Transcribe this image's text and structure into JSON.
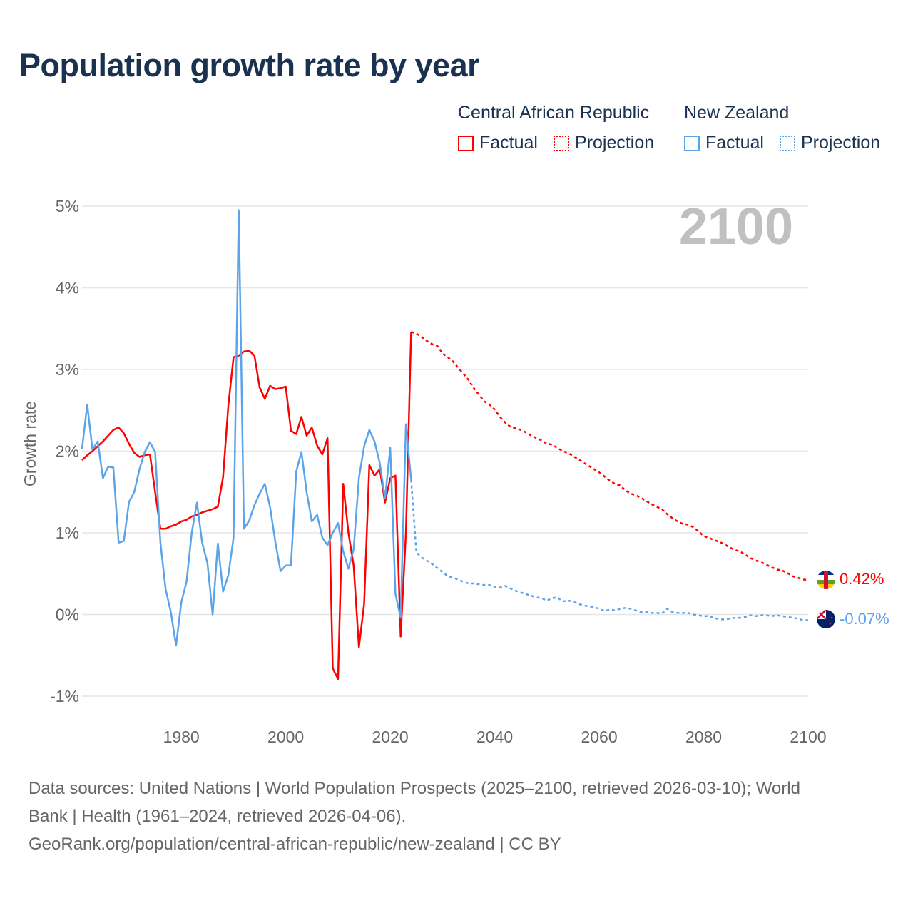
{
  "title": "Population growth rate by year",
  "legend": {
    "groups": [
      {
        "name": "Central African Republic",
        "factual": "Factual",
        "projection": "Projection",
        "color": "#ff0000"
      },
      {
        "name": "New Zealand",
        "factual": "Factual",
        "projection": "Projection",
        "color": "#5ca4ea"
      }
    ]
  },
  "footer": {
    "line1": "Data sources: United Nations | World Population Prospects (2025–2100, retrieved 2026-03-10); World",
    "line2": "Bank | Health (1961–2024, retrieved 2026-04-06).",
    "line3": "GeoRank.org/population/central-african-republic/new-zealand | CC BY"
  },
  "chart_data": {
    "type": "line",
    "title": "Population growth rate by year",
    "ylabel": "Growth rate",
    "xlabel": "",
    "year_watermark": "2100",
    "xlim": [
      1961,
      2100
    ],
    "ylim": [
      -1,
      5
    ],
    "x_ticks": [
      "1980",
      "2000",
      "2020",
      "2040",
      "2060",
      "2080",
      "2100"
    ],
    "y_ticks": [
      "-1%",
      "0%",
      "1%",
      "2%",
      "3%",
      "4%",
      "5%"
    ],
    "grid": true,
    "series": [
      {
        "name": "Central African Republic – Factual",
        "color": "#ff0000",
        "style": "solid",
        "start_year": 1961,
        "values": [
          1.89,
          1.95,
          2.0,
          2.06,
          2.12,
          2.19,
          2.26,
          2.29,
          2.22,
          2.09,
          1.98,
          1.93,
          1.95,
          1.96,
          1.5,
          1.05,
          1.05,
          1.08,
          1.1,
          1.14,
          1.16,
          1.2,
          1.22,
          1.25,
          1.27,
          1.29,
          1.32,
          1.68,
          2.56,
          3.15,
          3.17,
          3.22,
          3.23,
          3.17,
          2.78,
          2.64,
          2.8,
          2.76,
          2.77,
          2.79,
          2.25,
          2.21,
          2.42,
          2.19,
          2.29,
          2.07,
          1.96,
          2.16,
          -0.66,
          -0.79,
          1.6,
          1.0,
          0.6,
          -0.4,
          0.13,
          1.83,
          1.7,
          1.78,
          1.37,
          1.67,
          1.7,
          -0.27,
          1.0,
          3.46
        ]
      },
      {
        "name": "Central African Republic – Projection",
        "color": "#ff0000",
        "style": "dotted",
        "start_year": 2024,
        "values": [
          3.46,
          3.44,
          3.4,
          3.35,
          3.31,
          3.29,
          3.2,
          3.15,
          3.1,
          3.02,
          2.95,
          2.87,
          2.77,
          2.69,
          2.61,
          2.57,
          2.51,
          2.42,
          2.35,
          2.3,
          2.28,
          2.26,
          2.23,
          2.19,
          2.16,
          2.13,
          2.09,
          2.08,
          2.04,
          2.0,
          1.98,
          1.94,
          1.9,
          1.86,
          1.82,
          1.78,
          1.74,
          1.69,
          1.64,
          1.6,
          1.58,
          1.52,
          1.48,
          1.46,
          1.43,
          1.39,
          1.35,
          1.32,
          1.29,
          1.23,
          1.18,
          1.14,
          1.11,
          1.1,
          1.07,
          1.02,
          0.96,
          0.94,
          0.91,
          0.89,
          0.86,
          0.82,
          0.79,
          0.77,
          0.73,
          0.69,
          0.66,
          0.64,
          0.61,
          0.58,
          0.55,
          0.54,
          0.51,
          0.47,
          0.45,
          0.43,
          0.42
        ],
        "end_label": "0.42%"
      },
      {
        "name": "New Zealand – Factual",
        "color": "#5ca4ea",
        "style": "solid",
        "start_year": 1961,
        "values": [
          2.03,
          2.57,
          2.02,
          2.12,
          1.67,
          1.81,
          1.8,
          0.88,
          0.9,
          1.38,
          1.5,
          1.78,
          1.99,
          2.11,
          1.99,
          0.88,
          0.31,
          0.03,
          -0.38,
          0.15,
          0.4,
          1.0,
          1.37,
          0.88,
          0.63,
          0.0,
          0.87,
          0.28,
          0.48,
          0.94,
          4.95,
          1.05,
          1.15,
          1.34,
          1.48,
          1.6,
          1.31,
          0.89,
          0.53,
          0.6,
          0.6,
          1.75,
          1.99,
          1.5,
          1.14,
          1.22,
          0.94,
          0.85,
          1.0,
          1.12,
          0.77,
          0.56,
          0.8,
          1.67,
          2.06,
          2.26,
          2.12,
          1.85,
          1.42,
          2.04,
          0.25,
          -0.04,
          2.33,
          1.65
        ]
      },
      {
        "name": "New Zealand – Projection",
        "color": "#5ca4ea",
        "style": "dotted",
        "start_year": 2024,
        "values": [
          1.65,
          0.76,
          0.7,
          0.66,
          0.62,
          0.57,
          0.52,
          0.47,
          0.45,
          0.43,
          0.4,
          0.38,
          0.38,
          0.37,
          0.36,
          0.36,
          0.34,
          0.33,
          0.35,
          0.32,
          0.29,
          0.27,
          0.25,
          0.23,
          0.21,
          0.2,
          0.17,
          0.2,
          0.21,
          0.16,
          0.17,
          0.16,
          0.13,
          0.11,
          0.1,
          0.09,
          0.07,
          0.04,
          0.06,
          0.05,
          0.07,
          0.08,
          0.07,
          0.05,
          0.03,
          0.03,
          0.02,
          0.02,
          0.01,
          0.07,
          0.03,
          0.02,
          0.02,
          0.02,
          0.0,
          -0.01,
          -0.02,
          -0.02,
          -0.04,
          -0.06,
          -0.06,
          -0.05,
          -0.04,
          -0.04,
          -0.03,
          -0.01,
          -0.02,
          -0.01,
          -0.01,
          -0.02,
          -0.01,
          -0.02,
          -0.03,
          -0.04,
          -0.05,
          -0.07,
          -0.07
        ],
        "end_label": "-0.07%"
      }
    ]
  }
}
